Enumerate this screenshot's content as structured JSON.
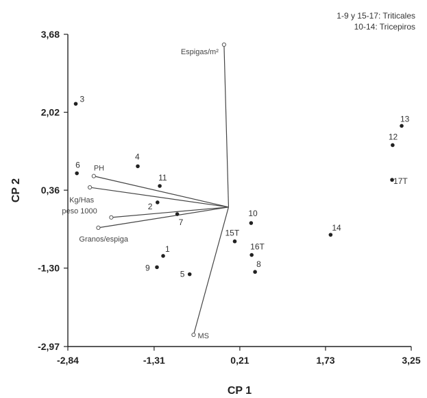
{
  "chart_data": {
    "type": "scatter",
    "xlabel": "CP 1",
    "ylabel": "CP 2",
    "xlim": [
      -2.84,
      3.25
    ],
    "ylim": [
      -2.97,
      3.68
    ],
    "x_ticks": [
      "-2,84",
      "-1,31",
      "0,21",
      "1,73",
      "3,25"
    ],
    "x_tick_values": [
      -2.84,
      -1.31,
      0.21,
      1.73,
      3.25
    ],
    "y_ticks": [
      "3,68",
      "2,02",
      "0,36",
      "-1,30",
      "-2,97"
    ],
    "y_tick_values": [
      3.68,
      2.02,
      0.36,
      -1.3,
      -2.97
    ],
    "legend": {
      "position": "top-right",
      "lines": [
        "1-9 y 15-17: Triticales",
        "10-14: Tricepiros"
      ]
    },
    "points": [
      {
        "label": "1",
        "x": -1.15,
        "y": -1.04
      },
      {
        "label": "2",
        "x": -1.25,
        "y": 0.1
      },
      {
        "label": "3",
        "x": -2.7,
        "y": 2.2
      },
      {
        "label": "4",
        "x": -1.6,
        "y": 0.87
      },
      {
        "label": "5",
        "x": -0.68,
        "y": -1.43
      },
      {
        "label": "6",
        "x": -2.68,
        "y": 0.72
      },
      {
        "label": "7",
        "x": -0.9,
        "y": -0.15
      },
      {
        "label": "8",
        "x": 0.48,
        "y": -1.38
      },
      {
        "label": "9",
        "x": -1.26,
        "y": -1.28
      },
      {
        "label": "10",
        "x": 0.41,
        "y": -0.34
      },
      {
        "label": "11",
        "x": -1.21,
        "y": 0.45
      },
      {
        "label": "12",
        "x": 2.92,
        "y": 1.32
      },
      {
        "label": "13",
        "x": 3.08,
        "y": 1.73
      },
      {
        "label": "14",
        "x": 1.82,
        "y": -0.59
      },
      {
        "label": "15T",
        "x": 0.12,
        "y": -0.73
      },
      {
        "label": "16T",
        "x": 0.42,
        "y": -1.02
      },
      {
        "label": "17T",
        "x": 2.91,
        "y": 0.58
      }
    ],
    "origin": [
      0.01,
      0.0
    ],
    "vectors": [
      {
        "label": "Espigas/m²",
        "x": -0.07,
        "y": 3.46
      },
      {
        "label": "PH",
        "x": -2.38,
        "y": 0.66
      },
      {
        "label": "Kg/Has",
        "x": -2.45,
        "y": 0.42
      },
      {
        "label": "peso 1000",
        "x": -2.07,
        "y": -0.22
      },
      {
        "label": "Granos/espiga",
        "x": -2.3,
        "y": -0.44
      },
      {
        "label": "MS",
        "x": -0.61,
        "y": -2.72
      }
    ]
  }
}
